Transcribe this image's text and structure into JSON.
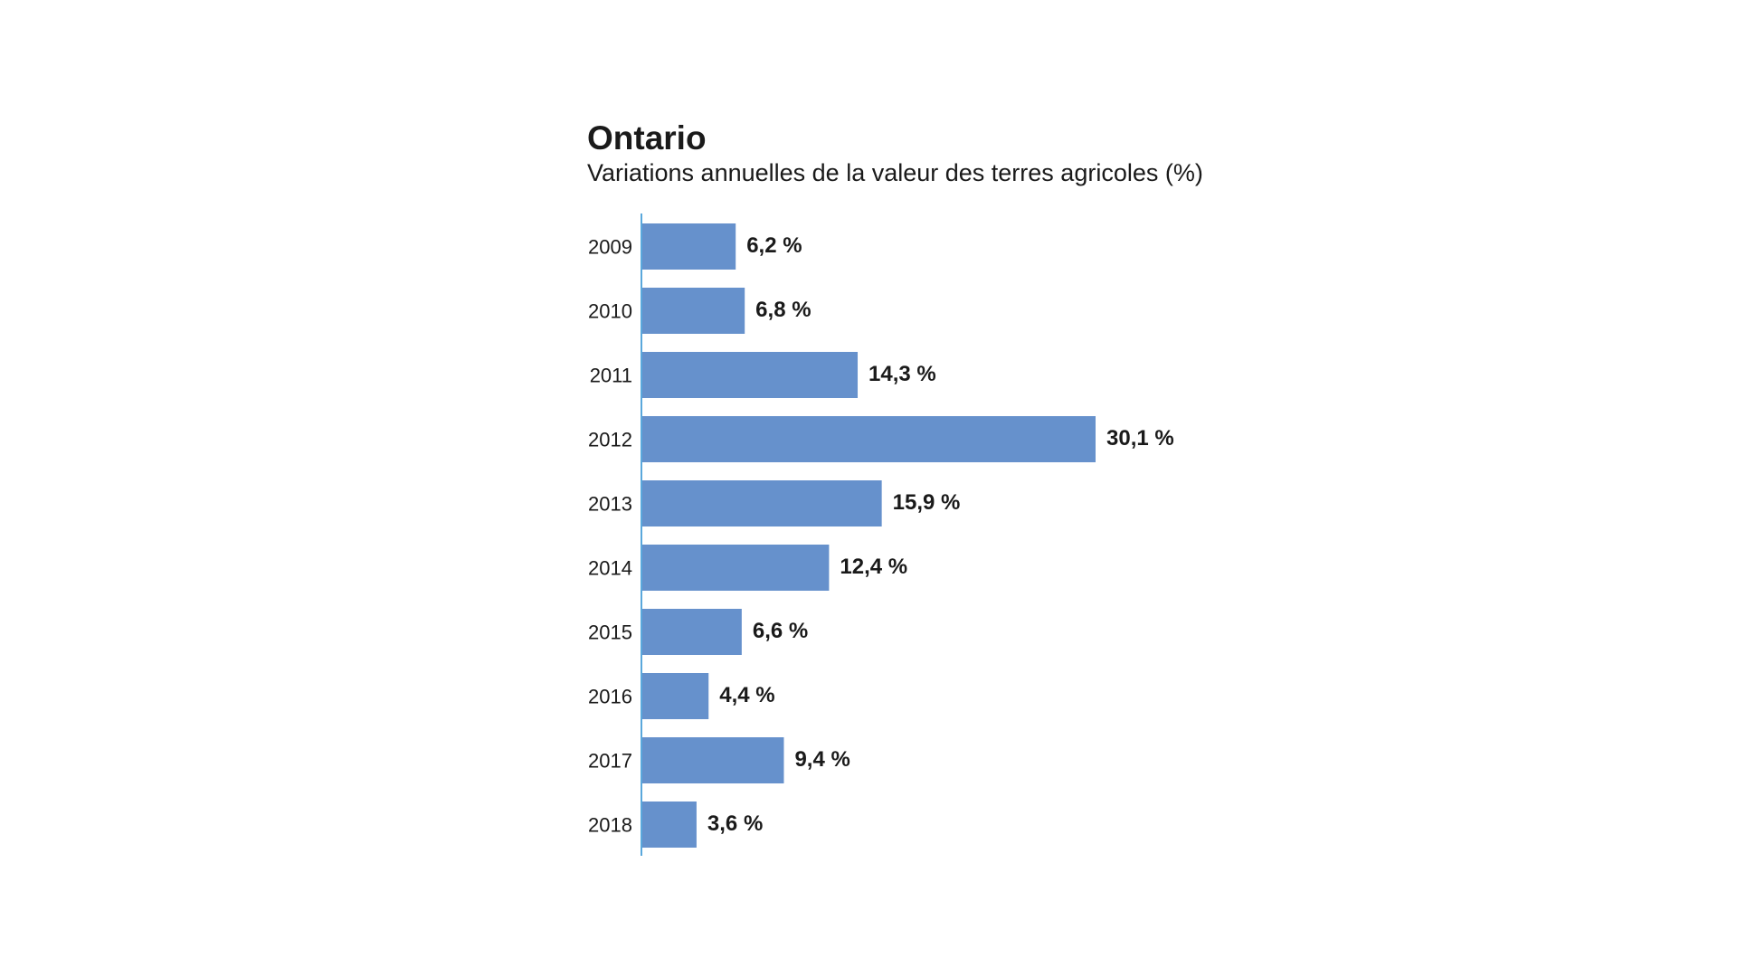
{
  "chart_data": {
    "type": "bar",
    "orientation": "horizontal",
    "title": "Ontario",
    "subtitle": "Variations annuelles de la valeur des terres agricoles (%)",
    "xlabel": "",
    "ylabel": "",
    "categories": [
      "2009",
      "2010",
      "2011",
      "2012",
      "2013",
      "2014",
      "2015",
      "2016",
      "2017",
      "2018"
    ],
    "values": [
      6.2,
      6.8,
      14.3,
      30.1,
      15.9,
      12.4,
      6.6,
      4.4,
      9.4,
      3.6
    ],
    "data_labels": [
      "6,2 %",
      "6,8 %",
      "14,3 %",
      "30,1 %",
      "15,9 %",
      "12,4 %",
      "6,6 %",
      "4,4 %",
      "9,4 %",
      "3,6 %"
    ],
    "xlim": [
      0,
      30.1
    ],
    "grid": false,
    "legend": "none",
    "bar_color": "#6691cc",
    "axis_color": "#5aa8dc"
  }
}
